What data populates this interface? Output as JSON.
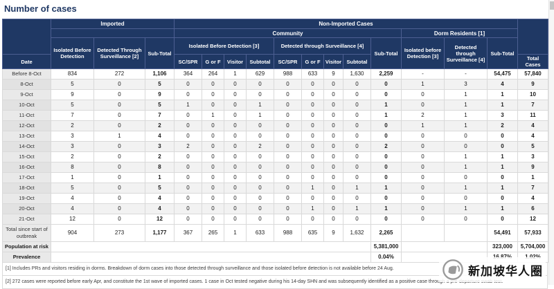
{
  "page": {
    "title": "Number of cases"
  },
  "table": {
    "headers": {
      "imported": "Imported",
      "non_imported": "Non-Imported Cases",
      "community": "Community",
      "dorm": "Dorm Residents [1]",
      "imp_isolated": "Isolated Before Detection",
      "imp_detected": "Detected Through Surveillance [2]",
      "imp_subtotal": "Sub-Total",
      "comm_isolated": "Isolated Before Detection [3]",
      "comm_detected": "Detected through Surveillance [4]",
      "comm_subtotal": "Sub-Total",
      "dorm_isolated": "Isolated before Detection [3]",
      "dorm_detected": "Detected through Surveillance [4]",
      "dorm_subtotal": "Sub-Total",
      "date": "Date",
      "sc_spr": "SC/SPR",
      "g_or_f": "G or F",
      "visitor": "Visitor",
      "subtotal": "Subtotal",
      "total_cases": "Total Cases"
    },
    "rows": [
      [
        "Before 8-Oct",
        "834",
        "272",
        "1,106",
        "364",
        "264",
        "1",
        "629",
        "988",
        "633",
        "9",
        "1,630",
        "2,259",
        "-",
        "-",
        "54,475",
        "57,840"
      ],
      [
        "8-Oct",
        "5",
        "0",
        "5",
        "0",
        "0",
        "0",
        "0",
        "0",
        "0",
        "0",
        "0",
        "0",
        "1",
        "3",
        "4",
        "9"
      ],
      [
        "9-Oct",
        "9",
        "0",
        "9",
        "0",
        "0",
        "0",
        "0",
        "0",
        "0",
        "0",
        "0",
        "0",
        "0",
        "1",
        "1",
        "10"
      ],
      [
        "10-Oct",
        "5",
        "0",
        "5",
        "1",
        "0",
        "0",
        "1",
        "0",
        "0",
        "0",
        "0",
        "1",
        "0",
        "1",
        "1",
        "7"
      ],
      [
        "11-Oct",
        "7",
        "0",
        "7",
        "0",
        "1",
        "0",
        "1",
        "0",
        "0",
        "0",
        "0",
        "1",
        "2",
        "1",
        "3",
        "11"
      ],
      [
        "12-Oct",
        "2",
        "0",
        "2",
        "0",
        "0",
        "0",
        "0",
        "0",
        "0",
        "0",
        "0",
        "0",
        "1",
        "1",
        "2",
        "4"
      ],
      [
        "13-Oct",
        "3",
        "1",
        "4",
        "0",
        "0",
        "0",
        "0",
        "0",
        "0",
        "0",
        "0",
        "0",
        "0",
        "0",
        "0",
        "4"
      ],
      [
        "14-Oct",
        "3",
        "0",
        "3",
        "2",
        "0",
        "0",
        "2",
        "0",
        "0",
        "0",
        "0",
        "2",
        "0",
        "0",
        "0",
        "5"
      ],
      [
        "15-Oct",
        "2",
        "0",
        "2",
        "0",
        "0",
        "0",
        "0",
        "0",
        "0",
        "0",
        "0",
        "0",
        "0",
        "1",
        "1",
        "3"
      ],
      [
        "16-Oct",
        "8",
        "0",
        "8",
        "0",
        "0",
        "0",
        "0",
        "0",
        "0",
        "0",
        "0",
        "0",
        "0",
        "1",
        "1",
        "9"
      ],
      [
        "17-Oct",
        "1",
        "0",
        "1",
        "0",
        "0",
        "0",
        "0",
        "0",
        "0",
        "0",
        "0",
        "0",
        "0",
        "0",
        "0",
        "1"
      ],
      [
        "18-Oct",
        "5",
        "0",
        "5",
        "0",
        "0",
        "0",
        "0",
        "0",
        "1",
        "0",
        "1",
        "1",
        "0",
        "1",
        "1",
        "7"
      ],
      [
        "19-Oct",
        "4",
        "0",
        "4",
        "0",
        "0",
        "0",
        "0",
        "0",
        "0",
        "0",
        "0",
        "0",
        "0",
        "0",
        "0",
        "4"
      ],
      [
        "20-Oct",
        "4",
        "0",
        "4",
        "0",
        "0",
        "0",
        "0",
        "0",
        "1",
        "0",
        "1",
        "1",
        "0",
        "1",
        "1",
        "6"
      ],
      [
        "21-Oct",
        "12",
        "0",
        "12",
        "0",
        "0",
        "0",
        "0",
        "0",
        "0",
        "0",
        "0",
        "0",
        "0",
        "0",
        "0",
        "12"
      ]
    ],
    "total_row": [
      "Total since start of outbreak",
      "904",
      "273",
      "1,177",
      "367",
      "265",
      "1",
      "633",
      "988",
      "635",
      "9",
      "1,632",
      "2,265",
      "",
      "",
      "54,491",
      "57,933"
    ],
    "population_row": {
      "label": "Population at risk",
      "community_subtotal": "5,381,000",
      "dorm_subtotal": "323,000",
      "total": "5,704,000"
    },
    "prevalence_row": {
      "label": "Prevalence",
      "community_subtotal": "0.04%",
      "dorm_subtotal": "16.87%",
      "total": "1.02%"
    }
  },
  "footnotes": [
    "[1] Includes PRs and visitors residing in dorms. Breakdown of dorm cases into those detected through surveillance and those isolated before detection is not available before 24 Aug.",
    "[2] 272 cases were reported before early Apr, and constitute the 1st wave of imported cases. 1 case in Oct tested negative during his 14-day SHN and was subsequently identified as a positive case through a pre-departure swab test."
  ],
  "watermark": {
    "text": "新加坡华人圈"
  },
  "colors": {
    "header_bg": "#1f3864",
    "title": "#1f3864",
    "stripe": "#f2f2f2",
    "date_column": "#e9e9e9",
    "border": "#d9d9d9"
  }
}
